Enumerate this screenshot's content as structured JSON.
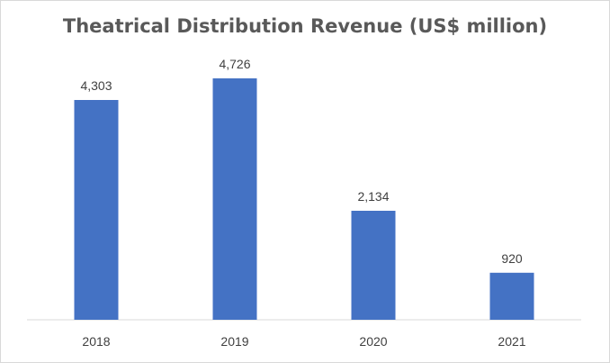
{
  "chart_data": {
    "type": "bar",
    "title": "Theatrical Distribution Revenue (US$ million)",
    "xlabel": "",
    "ylabel": "",
    "categories": [
      "2018",
      "2019",
      "2020",
      "2021"
    ],
    "values": [
      4303,
      4726,
      2134,
      920
    ],
    "value_labels": [
      "4,303",
      "4,726",
      "2,134",
      "920"
    ],
    "ylim": [
      0,
      4726
    ],
    "grid": false,
    "legend": "none",
    "bar_color": "#4472c4"
  }
}
